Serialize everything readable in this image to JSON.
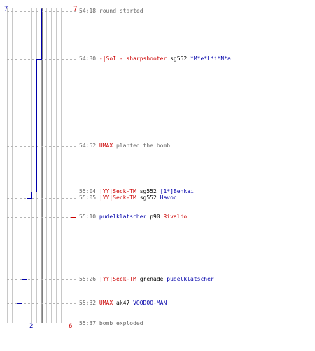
{
  "score": {
    "blue_start": "7",
    "red_start": "7",
    "blue_end": "2",
    "red_end": "6"
  },
  "colors": {
    "blue": "#0000aa",
    "red": "#cc0000",
    "grid": "#c8c8c8",
    "center": "#808080",
    "dash": "#b4b4b4",
    "time": "#666666"
  },
  "events": [
    {
      "time": "54:18",
      "type": "note",
      "text": "round started"
    },
    {
      "time": "54:30",
      "type": "kill",
      "killer": "-|SoI|- sharpshooter",
      "killer_team": "red",
      "weapon": "sg552",
      "victim": "*M*e*L*i*N*a",
      "victim_team": "blue"
    },
    {
      "time": "54:52",
      "type": "action",
      "player": "UMAX",
      "player_team": "red",
      "text": "planted the bomb"
    },
    {
      "time": "55:04",
      "type": "kill",
      "killer": "|YY|Seck-TM",
      "killer_team": "red",
      "weapon": "sg552",
      "victim": "[1*]Benkai",
      "victim_team": "blue"
    },
    {
      "time": "55:05",
      "type": "kill",
      "killer": "|YY|Seck-TM",
      "killer_team": "red",
      "weapon": "sg552",
      "victim": "Havoc",
      "victim_team": "blue"
    },
    {
      "time": "55:10",
      "type": "kill",
      "killer": "pudelklatscher",
      "killer_team": "blue",
      "weapon": "p90",
      "victim": "Rivaldo",
      "victim_team": "red"
    },
    {
      "time": "55:26",
      "type": "kill",
      "killer": "|YY|Seck-TM",
      "killer_team": "red",
      "weapon": "grenade",
      "victim": "pudelklatscher",
      "victim_team": "blue"
    },
    {
      "time": "55:32",
      "type": "kill",
      "killer": "UMAX",
      "killer_team": "red",
      "weapon": "ak47",
      "victim": "VOODOO-MAN",
      "victim_team": "blue"
    },
    {
      "time": "55:37",
      "type": "note",
      "text": "bomb exploded"
    }
  ]
}
